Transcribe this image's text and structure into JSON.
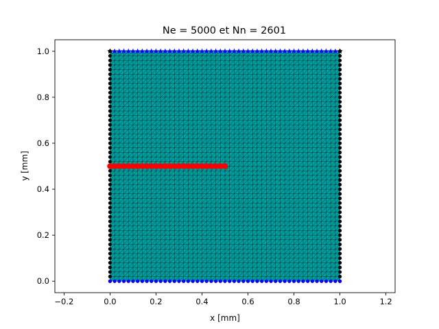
{
  "chart_data": {
    "type": "scatter",
    "title": "Ne = 5000 et Nn = 2601",
    "xlabel": "x [mm]",
    "ylabel": "y [mm]",
    "xlim": [
      -0.24,
      1.24
    ],
    "ylim": [
      -0.05,
      1.05
    ],
    "x_ticks": [
      "−0.2",
      "0.0",
      "0.2",
      "0.4",
      "0.6",
      "0.8",
      "1.0",
      "1.2"
    ],
    "x_tick_values": [
      -0.2,
      0.0,
      0.2,
      0.4,
      0.6,
      0.8,
      1.0,
      1.2
    ],
    "y_ticks": [
      "0.0",
      "0.2",
      "0.4",
      "0.6",
      "0.8",
      "1.0"
    ],
    "y_tick_values": [
      0.0,
      0.2,
      0.4,
      0.6,
      0.8,
      1.0
    ],
    "grid": false,
    "mesh": {
      "domain_x": [
        0,
        1
      ],
      "domain_y": [
        0,
        1
      ],
      "divisions": 50,
      "elements": 5000,
      "nodes": 2601,
      "fill_color": "#00a0a0",
      "edge_color": "#000000"
    },
    "series": [
      {
        "marker": "circle",
        "color": "#000000",
        "side": "left",
        "x_fixed": 0,
        "y_range": [
          0,
          1
        ]
      },
      {
        "marker": "circle",
        "color": "#000000",
        "side": "right",
        "x_fixed": 1,
        "y_range": [
          0,
          1
        ]
      },
      {
        "marker": "circle",
        "color": "#0000ff",
        "side": "bottom",
        "y_fixed": 0,
        "x_range": [
          0,
          1
        ]
      },
      {
        "marker": "star",
        "color": "#0000ff",
        "side": "top",
        "y_fixed": 1,
        "x_range": [
          0,
          1
        ]
      },
      {
        "marker": "circle",
        "color": "#ff0000",
        "side": "crack",
        "y_fixed": 0.5,
        "x_range": [
          0,
          0.5
        ]
      }
    ],
    "corner_markers": [
      {
        "marker": "star",
        "color": "#000000",
        "x": 0,
        "y": 1
      },
      {
        "marker": "star",
        "color": "#000000",
        "x": 1,
        "y": 1
      }
    ]
  }
}
